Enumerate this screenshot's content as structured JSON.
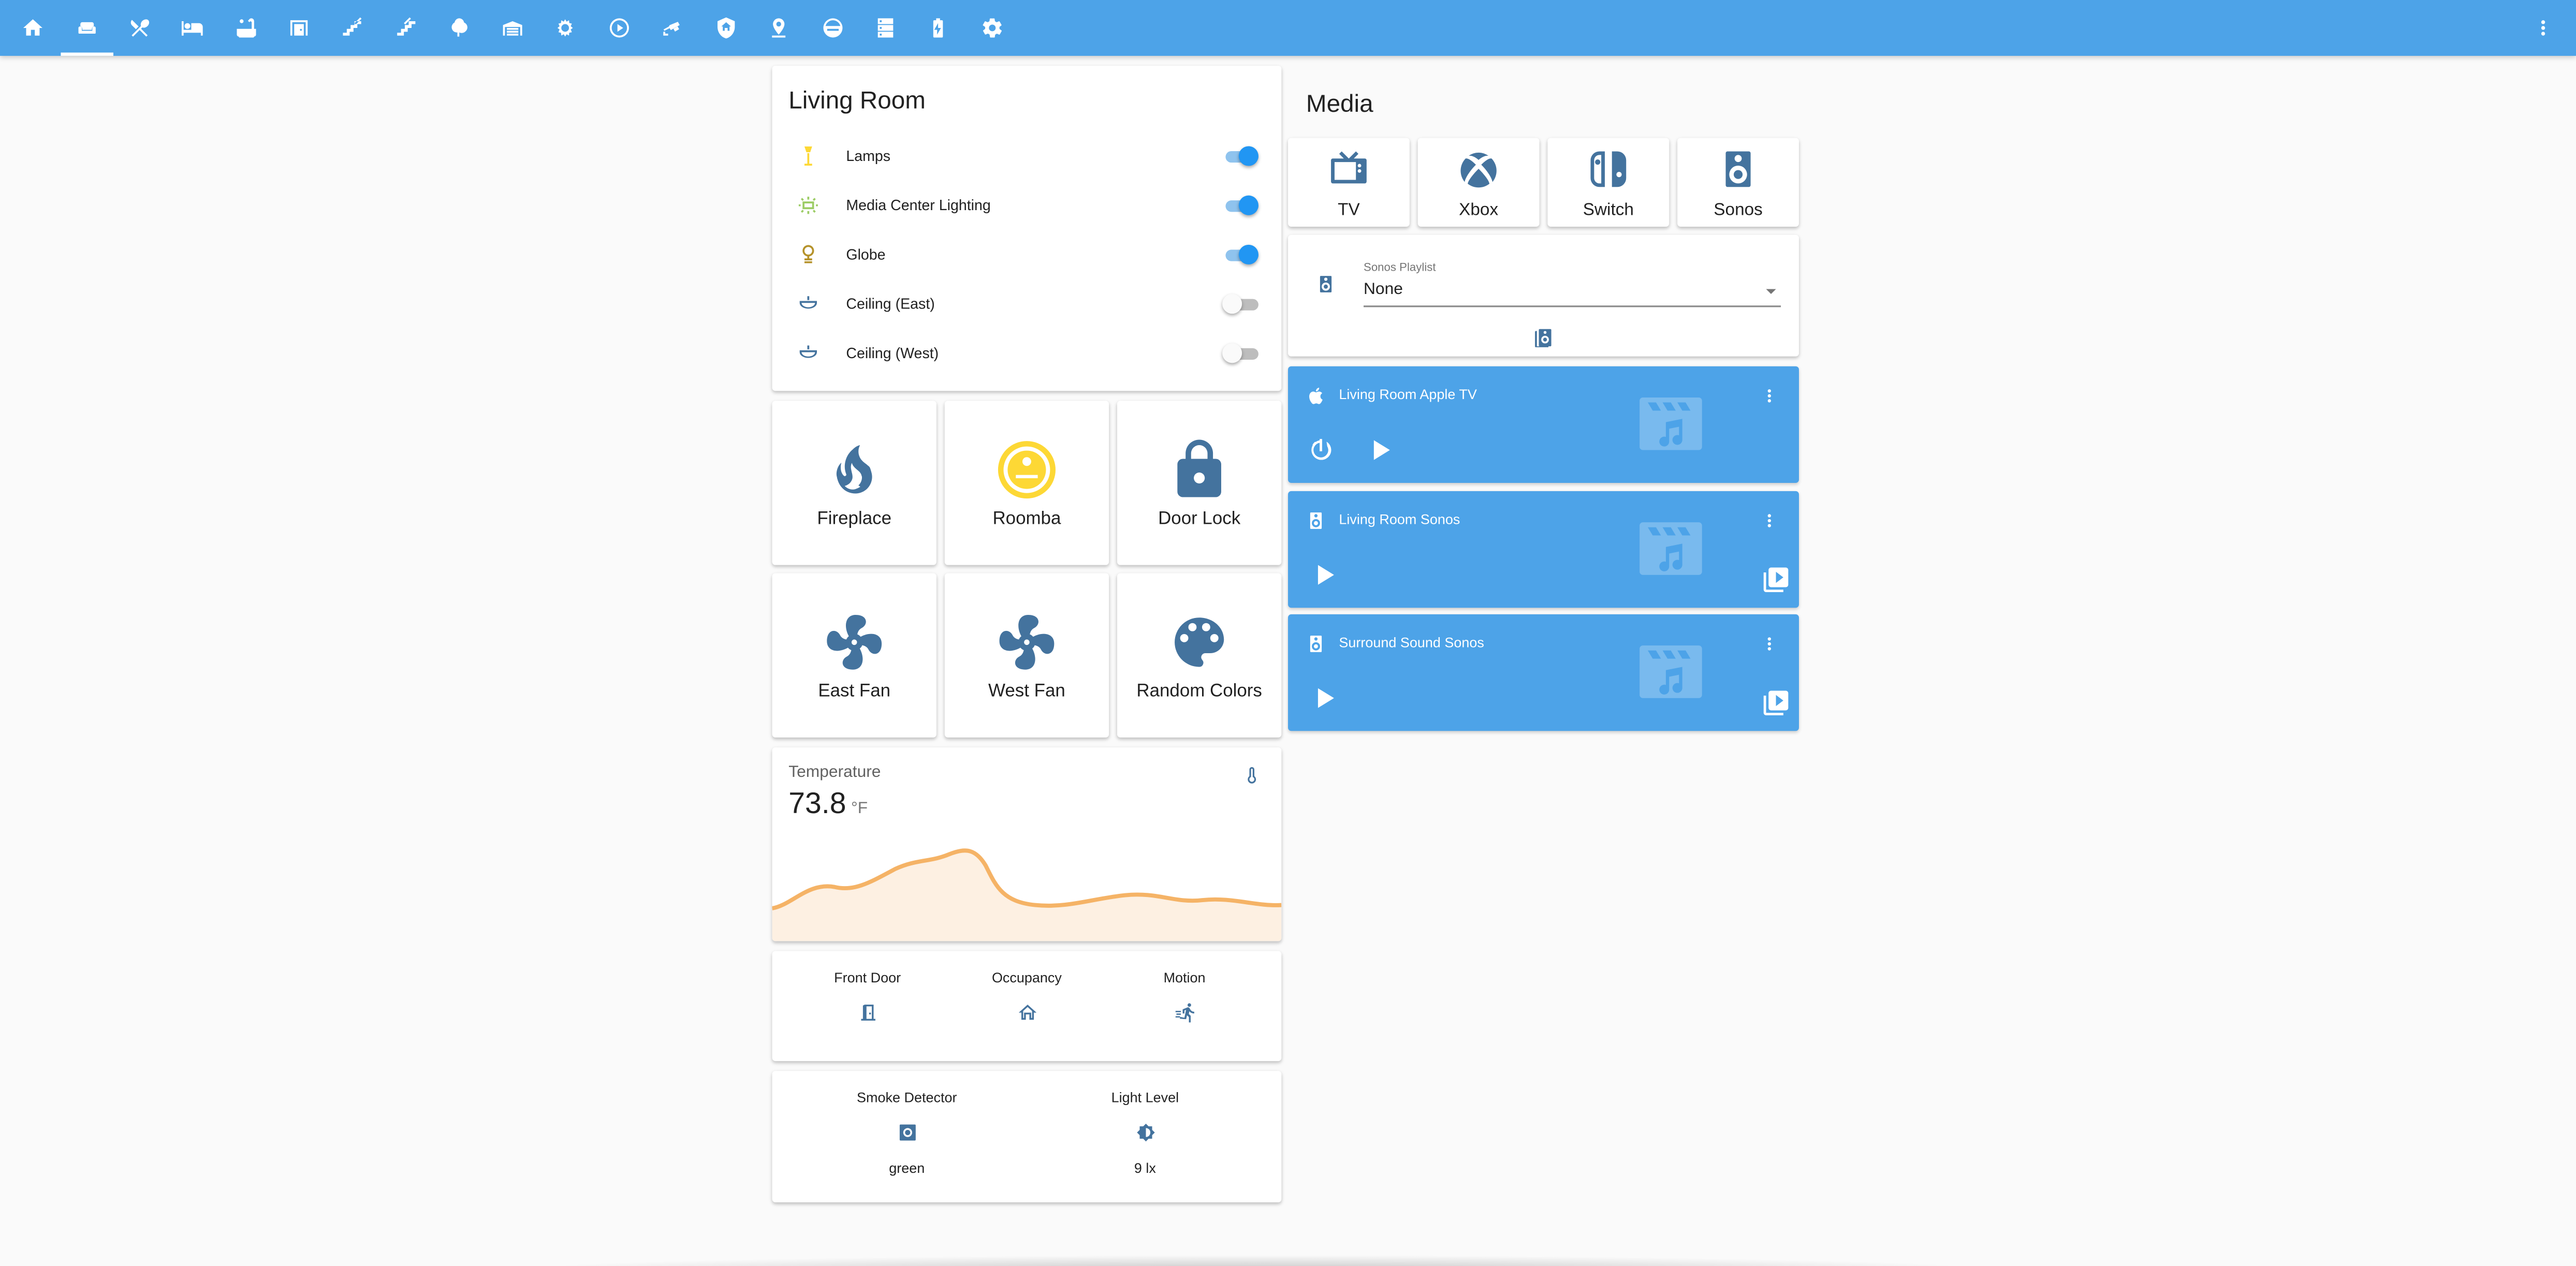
{
  "colors": {
    "header_bg": "#4da3e8",
    "icon_blue": "#44739e",
    "switch_on": "#2196f3",
    "lamp_yellow": "#fdd835",
    "media_center_green": "#9ccc65",
    "temp_graph": "#f5b366"
  },
  "header": {
    "tabs": [
      {
        "icon": "home-icon",
        "active": false
      },
      {
        "icon": "sofa-icon",
        "active": true
      },
      {
        "icon": "silverware-icon",
        "active": false
      },
      {
        "icon": "bed-icon",
        "active": false
      },
      {
        "icon": "bathtub-icon",
        "active": false
      },
      {
        "icon": "door-frame-icon",
        "active": false
      },
      {
        "icon": "stairs-up-icon",
        "active": false
      },
      {
        "icon": "stairs-down-icon",
        "active": false
      },
      {
        "icon": "tree-icon",
        "active": false
      },
      {
        "icon": "garage-icon",
        "active": false
      },
      {
        "icon": "weather-icon",
        "active": false
      },
      {
        "icon": "play-circle-icon",
        "active": false
      },
      {
        "icon": "cctv-icon",
        "active": false
      },
      {
        "icon": "shield-home-icon",
        "active": false
      },
      {
        "icon": "map-marker-icon",
        "active": false
      },
      {
        "icon": "robot-vacuum-icon",
        "active": false
      },
      {
        "icon": "server-icon",
        "active": false
      },
      {
        "icon": "battery-charging-icon",
        "active": false
      },
      {
        "icon": "cog-icon",
        "active": false
      }
    ],
    "menu_icon": "dots-vertical-icon"
  },
  "living_room": {
    "title": "Living Room",
    "entities": [
      {
        "name": "Lamps",
        "icon": "floor-lamp-icon",
        "state": "on"
      },
      {
        "name": "Media Center Lighting",
        "icon": "led-strip-icon",
        "state": "on"
      },
      {
        "name": "Globe",
        "icon": "globe-lamp-icon",
        "state": "on"
      },
      {
        "name": "Ceiling (East)",
        "icon": "ceiling-light-icon",
        "state": "off"
      },
      {
        "name": "Ceiling (West)",
        "icon": "ceiling-light-icon",
        "state": "off"
      }
    ]
  },
  "buttons": [
    {
      "name": "Fireplace",
      "icon": "fire-icon"
    },
    {
      "name": "Roomba",
      "icon": "robot-vacuum-icon"
    },
    {
      "name": "Door Lock",
      "icon": "lock-icon"
    },
    {
      "name": "East Fan",
      "icon": "fan-icon"
    },
    {
      "name": "West Fan",
      "icon": "fan-icon"
    },
    {
      "name": "Random Colors",
      "icon": "palette-icon"
    }
  ],
  "temperature": {
    "name": "Temperature",
    "value": "73.8",
    "unit": "°F",
    "icon": "thermometer-icon"
  },
  "glance1": [
    {
      "name": "Front Door",
      "icon": "door-icon"
    },
    {
      "name": "Occupancy",
      "icon": "home-outline-icon"
    },
    {
      "name": "Motion",
      "icon": "run-fast-icon"
    }
  ],
  "glance2": [
    {
      "name": "Smoke Detector",
      "icon": "smoke-detector-icon",
      "state": "green"
    },
    {
      "name": "Light Level",
      "icon": "brightness-icon",
      "state": "9 lx"
    }
  ],
  "media": {
    "title": "Media",
    "buttons": [
      {
        "name": "TV",
        "icon": "television-classic-icon"
      },
      {
        "name": "Xbox",
        "icon": "xbox-icon"
      },
      {
        "name": "Switch",
        "icon": "nintendo-switch-icon"
      },
      {
        "name": "Sonos",
        "icon": "speaker-icon"
      }
    ],
    "playlist": {
      "label": "Sonos Playlist",
      "value": "None",
      "icon": "speaker-icon",
      "action_icon": "speaker-multiple-icon"
    },
    "players": [
      {
        "name": "Living Room Apple TV",
        "icon": "apple-icon",
        "controls": [
          "power-icon",
          "play-icon"
        ],
        "extra": ""
      },
      {
        "name": "Living Room Sonos",
        "icon": "speaker-icon",
        "controls": [
          "play-icon"
        ],
        "extra": "source-icon"
      },
      {
        "name": "Surround Sound Sonos",
        "icon": "speaker-icon",
        "controls": [
          "play-icon"
        ],
        "extra": "source-icon"
      }
    ]
  }
}
